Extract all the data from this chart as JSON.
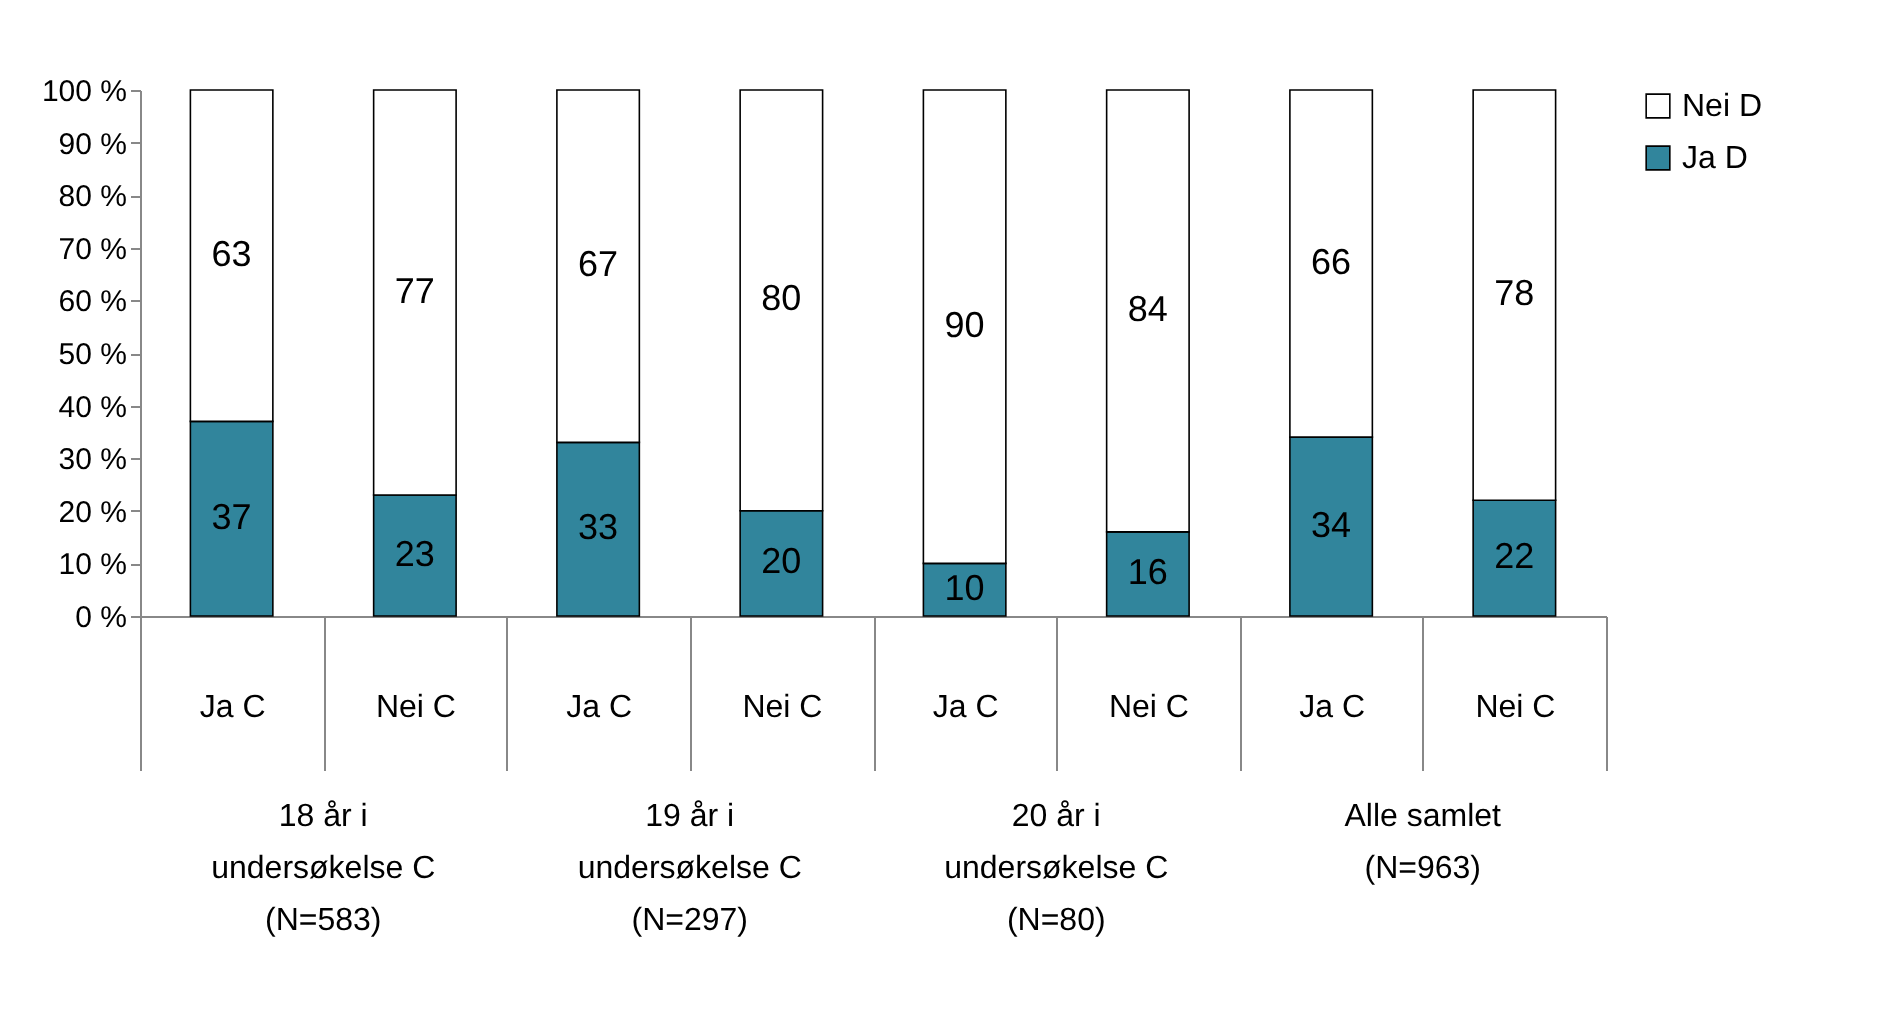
{
  "chart_data": {
    "type": "bar",
    "stacked": true,
    "categories": [
      "Ja C",
      "Nei C",
      "Ja C",
      "Nei C",
      "Ja C",
      "Nei C",
      "Ja C",
      "Nei C"
    ],
    "series": [
      {
        "name": "Ja D",
        "color": "#31859c",
        "values": [
          37,
          23,
          33,
          20,
          10,
          16,
          34,
          22
        ]
      },
      {
        "name": "Nei D",
        "color": "#ffffff",
        "values": [
          63,
          77,
          67,
          80,
          90,
          84,
          66,
          78
        ]
      }
    ],
    "ylim": [
      0,
      100
    ],
    "yticks": [
      {
        "value": 0,
        "label": "0 %"
      },
      {
        "value": 10,
        "label": "10 %"
      },
      {
        "value": 20,
        "label": "20 %"
      },
      {
        "value": 30,
        "label": "30 %"
      },
      {
        "value": 40,
        "label": "40 %"
      },
      {
        "value": 50,
        "label": "50 %"
      },
      {
        "value": 60,
        "label": "60 %"
      },
      {
        "value": 70,
        "label": "70 %"
      },
      {
        "value": 80,
        "label": "80 %"
      },
      {
        "value": 90,
        "label": "90 %"
      },
      {
        "value": 100,
        "label": "100 %"
      }
    ],
    "data_labels": true,
    "legend": "right",
    "grid": false,
    "annotations": [
      "18 år i\nundersøkelse C\n(N=583)",
      "19 år i\nundersøkelse C\n(N=297)",
      "20 år i\nundersøkelse C\n(N=80)",
      "Alle samlet\n(N=963)"
    ]
  }
}
